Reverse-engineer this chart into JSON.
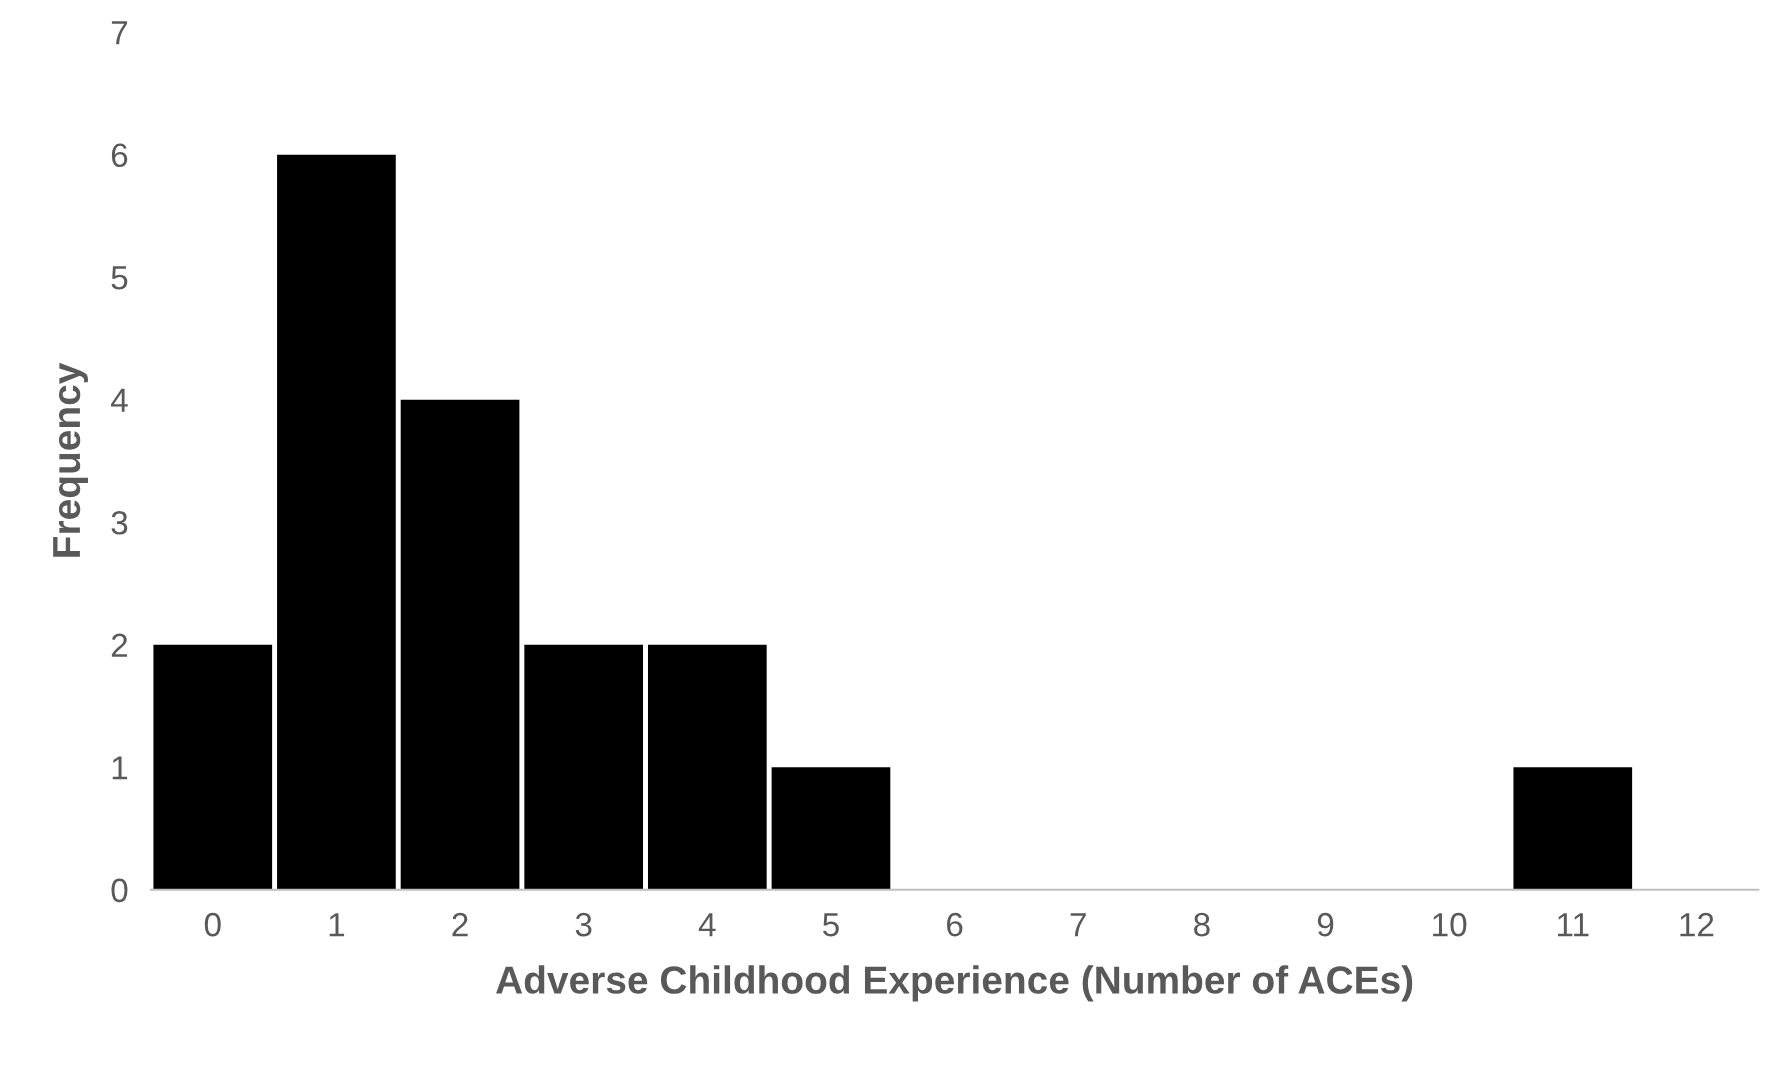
{
  "chart_data": {
    "type": "bar",
    "xlabel": "Adverse Childhood Experience (Number of ACEs)",
    "ylabel": "Frequency",
    "categories": [
      "0",
      "1",
      "2",
      "3",
      "4",
      "5",
      "6",
      "7",
      "8",
      "9",
      "10",
      "11",
      "12"
    ],
    "values": [
      2,
      6,
      4,
      2,
      2,
      1,
      0,
      0,
      0,
      0,
      0,
      1,
      0
    ],
    "color": "#000000",
    "ylim": [
      0,
      7
    ],
    "yticks": [
      0,
      1,
      2,
      3,
      4,
      5,
      6,
      7
    ],
    "grid": false
  }
}
